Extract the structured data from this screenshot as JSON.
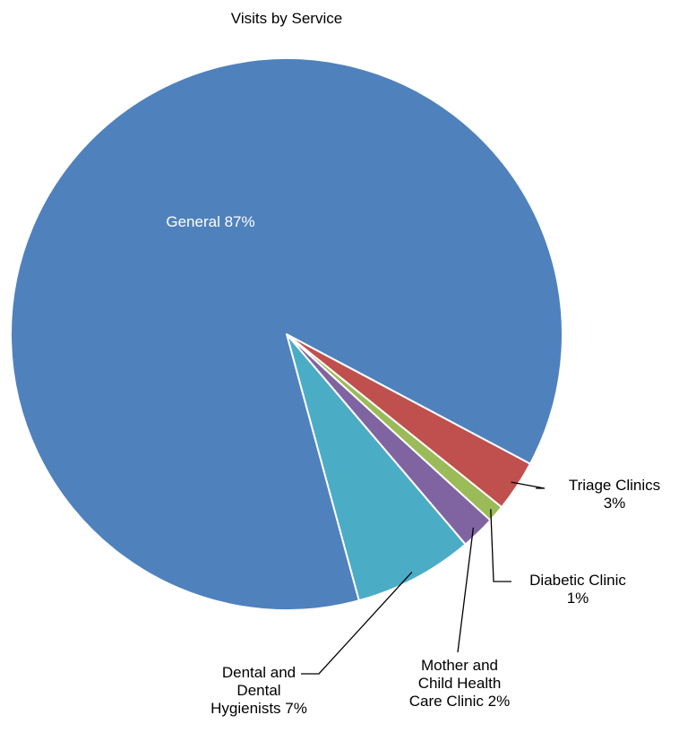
{
  "chart_data": {
    "type": "pie",
    "title": "Visits by Service",
    "start_angle_deg": 28,
    "direction": "clockwise",
    "legend": "none",
    "slices": [
      {
        "name": "Triage Clinics",
        "value": 3,
        "label": "Triage Clinics\n3%",
        "color": "#C0504D",
        "label_style": "callout"
      },
      {
        "name": "Diabetic Clinic",
        "value": 1,
        "label": "Diabetic Clinic\n1%",
        "color": "#9BBB59",
        "label_style": "callout"
      },
      {
        "name": "Mother and Child Health Care Clinic",
        "value": 2,
        "label": "Mother and\nChild Health\nCare Clinic 2%",
        "color": "#8064A2",
        "label_style": "callout"
      },
      {
        "name": "Dental and Dental Hygienists",
        "value": 7,
        "label": "Dental and\nDental\nHygienists 7%",
        "color": "#4BACC6",
        "label_style": "callout"
      },
      {
        "name": "General",
        "value": 87,
        "label": "General 87%",
        "color": "#4F81BD",
        "label_style": "inside"
      }
    ]
  }
}
